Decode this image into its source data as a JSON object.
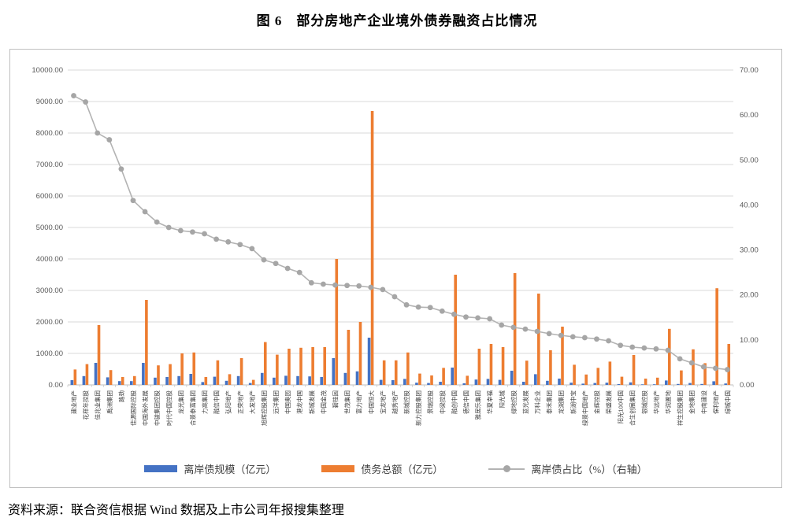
{
  "title": "图 6　部分房地产企业境外债券融资占比情况",
  "source": "资料来源：联合资信根据 Wind 数据及上市公司年报搜集整理",
  "legend": {
    "offshore": "离岸债规模（亿元）",
    "total": "债务总额（亿元）",
    "ratio": "离岸债占比（%）（右轴）"
  },
  "colors": {
    "offshore_bar": "#4472C4",
    "total_bar": "#ED7D31",
    "ratio_line": "#b3b3b3",
    "ratio_marker": "#a6a6a6",
    "grid": "#d9d9d9",
    "axis_line": "#bfbfbf",
    "axis_text": "#595959"
  },
  "chart_data": {
    "type": "bar",
    "subtype": "combo-bar-line-dual-axis",
    "title": "图 6　部分房地产企业境外债券融资占比情况",
    "xlabel": "",
    "ylabel_left": "亿元",
    "ylabel_right": "%",
    "grid": true,
    "legend_position": "bottom",
    "y_left": {
      "min": 0,
      "max": 10000,
      "ticks": [
        "10000.00",
        "9000.00",
        "8000.00",
        "7000.00",
        "6000.00",
        "5000.00",
        "4000.00",
        "3000.00",
        "2000.00",
        "1000.00",
        "0.00"
      ]
    },
    "y_right": {
      "min": 0,
      "max": 70,
      "ticks": [
        "70.00",
        "60.00",
        "50.00",
        "40.00",
        "30.00",
        "20.00",
        "10.00",
        "0.00"
      ]
    },
    "categories": [
      "建业地产",
      "花样年控股",
      "佳兆业集团",
      "禹洲集团",
      "路劲",
      "佳源国际控股",
      "中国海外发展",
      "中骏集团控股",
      "时代中国控股",
      "龙光集团",
      "合景泰富集团",
      "力高集团",
      "融信中国",
      "弘阳地产",
      "正荣地产",
      "大发地产",
      "旭辉控股集团",
      "远洋集团",
      "中国奥园",
      "港龙中国",
      "新城发展",
      "中国金茂",
      "碧桂园",
      "世茂集团",
      "富力地产",
      "中国恒大",
      "宝龙地产",
      "越秀地产",
      "新城控股",
      "新力控股集团",
      "景瑞控股",
      "中梁控股",
      "融创中国",
      "德信中国",
      "雅居乐集团",
      "华夏幸福",
      "阳光城",
      "绿地控股",
      "蓝光发展",
      "万科企业",
      "泰禾集团",
      "龙湖集团",
      "新湖中宝",
      "绿景中国地产",
      "金辉控股",
      "荣盛发展",
      "阳光100中国",
      "合生创展集团",
      "银城控股",
      "华远地产",
      "华润置地",
      "祥生控股集团",
      "金地集团",
      "中南建设",
      "保利地产",
      "绿城中国"
    ],
    "series": [
      {
        "name": "离岸债规模（亿元）",
        "type": "bar",
        "axis": "left",
        "color": "#4472C4",
        "values": [
          150,
          280,
          700,
          240,
          120,
          120,
          700,
          230,
          250,
          280,
          350,
          90,
          260,
          130,
          280,
          60,
          380,
          230,
          290,
          280,
          270,
          250,
          850,
          380,
          430,
          1500,
          160,
          150,
          190,
          70,
          60,
          100,
          550,
          50,
          170,
          190,
          160,
          450,
          100,
          340,
          130,
          200,
          70,
          40,
          60,
          70,
          25,
          80,
          18,
          20,
          140,
          30,
          60,
          30,
          115,
          45
        ]
      },
      {
        "name": "债务总额（亿元）",
        "type": "bar",
        "axis": "left",
        "color": "#ED7D31",
        "values": [
          490,
          660,
          1900,
          470,
          250,
          280,
          2700,
          620,
          660,
          1000,
          1030,
          250,
          780,
          340,
          850,
          160,
          1360,
          960,
          1150,
          1180,
          1200,
          1200,
          4000,
          1750,
          2000,
          8700,
          780,
          780,
          1030,
          360,
          300,
          540,
          3500,
          290,
          1150,
          1300,
          1200,
          3550,
          770,
          2900,
          1100,
          1850,
          640,
          330,
          540,
          740,
          260,
          950,
          200,
          230,
          1780,
          460,
          1130,
          690,
          3070,
          1300
        ]
      },
      {
        "name": "离岸债占比（%）（右轴）",
        "type": "line",
        "axis": "right",
        "color": "#a6a6a6",
        "values": [
          64.3,
          62.9,
          56,
          54.5,
          48,
          41,
          38.5,
          36.2,
          35,
          34.3,
          34,
          33.6,
          32.4,
          31.8,
          31.2,
          30.3,
          27.8,
          27,
          25.9,
          25,
          22.7,
          22.4,
          22.2,
          22.1,
          22,
          21.7,
          21.2,
          19.6,
          17.8,
          17.3,
          17.2,
          16.4,
          15.7,
          15.1,
          14.9,
          14.7,
          13.3,
          12.8,
          12.4,
          11.9,
          11.4,
          11,
          10.7,
          10.5,
          10.2,
          9.8,
          8.8,
          8.4,
          8.2,
          8,
          7.7,
          5.8,
          4.9,
          4,
          3.7,
          3.4
        ]
      }
    ]
  }
}
